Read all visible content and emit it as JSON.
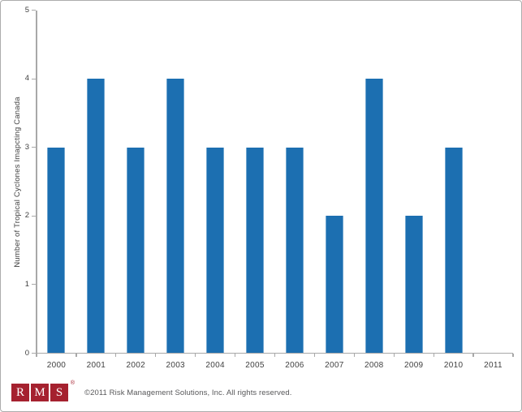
{
  "chart_data": {
    "type": "bar",
    "categories": [
      "2000",
      "2001",
      "2002",
      "2003",
      "2004",
      "2005",
      "2006",
      "2007",
      "2008",
      "2009",
      "2010",
      "2011"
    ],
    "values": [
      3,
      4,
      3,
      4,
      3,
      3,
      3,
      2,
      4,
      2,
      3,
      0
    ],
    "title": "",
    "xlabel": "",
    "ylabel": "Number of Tropical Cyclones Imapcting Canada",
    "ylim": [
      0,
      5
    ],
    "yticks": [
      0,
      1,
      2,
      3,
      4,
      5
    ],
    "grid": false,
    "legend_position": "none",
    "bar_color": "#1C6FB1",
    "bar_edge_color": "#6FA5CF",
    "axis_color": "#A8A8A8",
    "tick_label_color": "#3F3F3F"
  },
  "footer": {
    "logo_letters": [
      "R",
      "M",
      "S"
    ],
    "registered_mark": "®",
    "logo_color": "#A5212F",
    "copyright": "©2011 Risk Management Solutions, Inc. All rights reserved."
  }
}
